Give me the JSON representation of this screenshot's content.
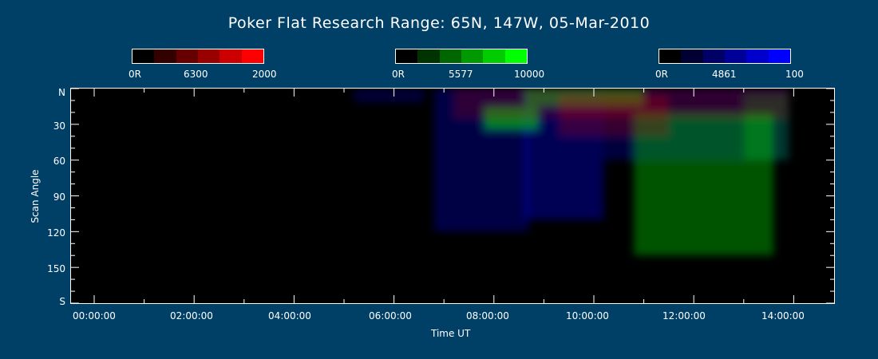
{
  "chart_data": {
    "type": "heatmap",
    "title": "Poker Flat Research Range: 65N, 147W, 05-Mar-2010",
    "xlabel": "Time UT",
    "ylabel": "Scan Angle",
    "x_tick_labels": [
      "00:00:00",
      "02:00:00",
      "04:00:00",
      "06:00:00",
      "08:00:00",
      "10:00:00",
      "12:00:00",
      "14:00:00"
    ],
    "y_tick_labels": [
      "N",
      "30",
      "60",
      "90",
      "120",
      "150",
      "S"
    ],
    "xlim_hours": [
      0,
      15
    ],
    "ylim_degrees": [
      0,
      180
    ],
    "colorbars": [
      {
        "channel": "6300",
        "color": "#ff0000",
        "min_label": "0R",
        "mid_label": "6300",
        "max_label": "2000",
        "swatches": [
          "#000000",
          "#330000",
          "#660000",
          "#990000",
          "#cc0000",
          "#ff0000"
        ]
      },
      {
        "channel": "5577",
        "color": "#00ff00",
        "min_label": "0R",
        "mid_label": "5577",
        "max_label": "10000",
        "swatches": [
          "#000000",
          "#003300",
          "#006600",
          "#009900",
          "#00cc00",
          "#00ff00"
        ]
      },
      {
        "channel": "4861",
        "color": "#0000ff",
        "min_label": "0R",
        "mid_label": "4861",
        "max_label": "100",
        "swatches": [
          "#000000",
          "#000033",
          "#000066",
          "#000099",
          "#0000cc",
          "#0000ff"
        ]
      }
    ],
    "emission_regions": [
      {
        "channel": "4861",
        "x": [
          5.2,
          6.6
        ],
        "y": [
          0,
          12
        ],
        "intensity": 0.35
      },
      {
        "channel": "4861",
        "x": [
          6.8,
          8.7
        ],
        "y": [
          0,
          120
        ],
        "intensity": 0.45
      },
      {
        "channel": "4861",
        "x": [
          8.6,
          10.2
        ],
        "y": [
          0,
          110
        ],
        "intensity": 0.55
      },
      {
        "channel": "4861",
        "x": [
          10.2,
          13.9
        ],
        "y": [
          0,
          60
        ],
        "intensity": 0.4
      },
      {
        "channel": "5577",
        "x": [
          7.8,
          8.9
        ],
        "y": [
          15,
          35
        ],
        "intensity": 0.8
      },
      {
        "channel": "5577",
        "x": [
          8.6,
          11.0
        ],
        "y": [
          0,
          15
        ],
        "intensity": 0.7
      },
      {
        "channel": "5577",
        "x": [
          10.8,
          13.6
        ],
        "y": [
          20,
          140
        ],
        "intensity": 0.55
      },
      {
        "channel": "5577",
        "x": [
          13.0,
          13.9
        ],
        "y": [
          5,
          60
        ],
        "intensity": 0.35
      },
      {
        "channel": "6300",
        "x": [
          7.2,
          13.9
        ],
        "y": [
          0,
          25
        ],
        "intensity": 0.3
      },
      {
        "channel": "6300",
        "x": [
          9.3,
          11.5
        ],
        "y": [
          5,
          40
        ],
        "intensity": 0.35
      }
    ]
  }
}
